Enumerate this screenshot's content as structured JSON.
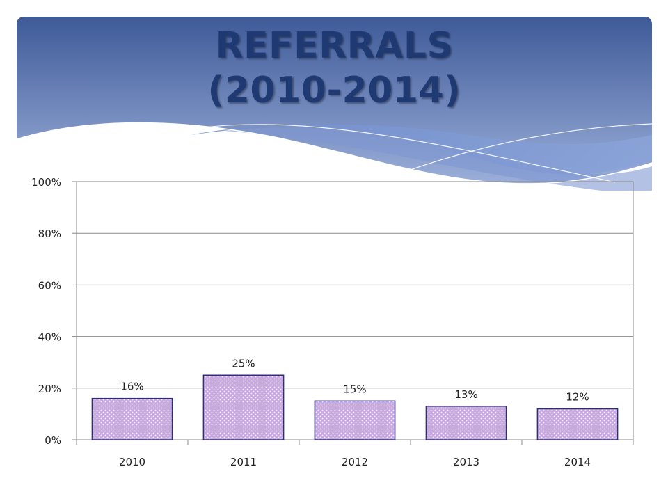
{
  "slide": {
    "title_line1": "REFERRALS",
    "title_line2": "(2010-2014)"
  },
  "colors": {
    "banner_top": "#3e5a98",
    "banner_bottom": "#8fa6d6",
    "bar_fill": "#c8a9e0",
    "bar_stroke": "#2b2f7a",
    "title": "#1f3a73",
    "grid": "#8a8a8a"
  },
  "chart_data": {
    "type": "bar",
    "categories": [
      "2010",
      "2011",
      "2012",
      "2013",
      "2014"
    ],
    "values": [
      16,
      25,
      15,
      13,
      12
    ],
    "data_labels": [
      "16%",
      "25%",
      "15%",
      "13%",
      "12%"
    ],
    "y_ticks": [
      "0%",
      "20%",
      "40%",
      "60%",
      "80%",
      "100%"
    ],
    "ylim": [
      0,
      100
    ],
    "grid": true,
    "legend": "none"
  }
}
